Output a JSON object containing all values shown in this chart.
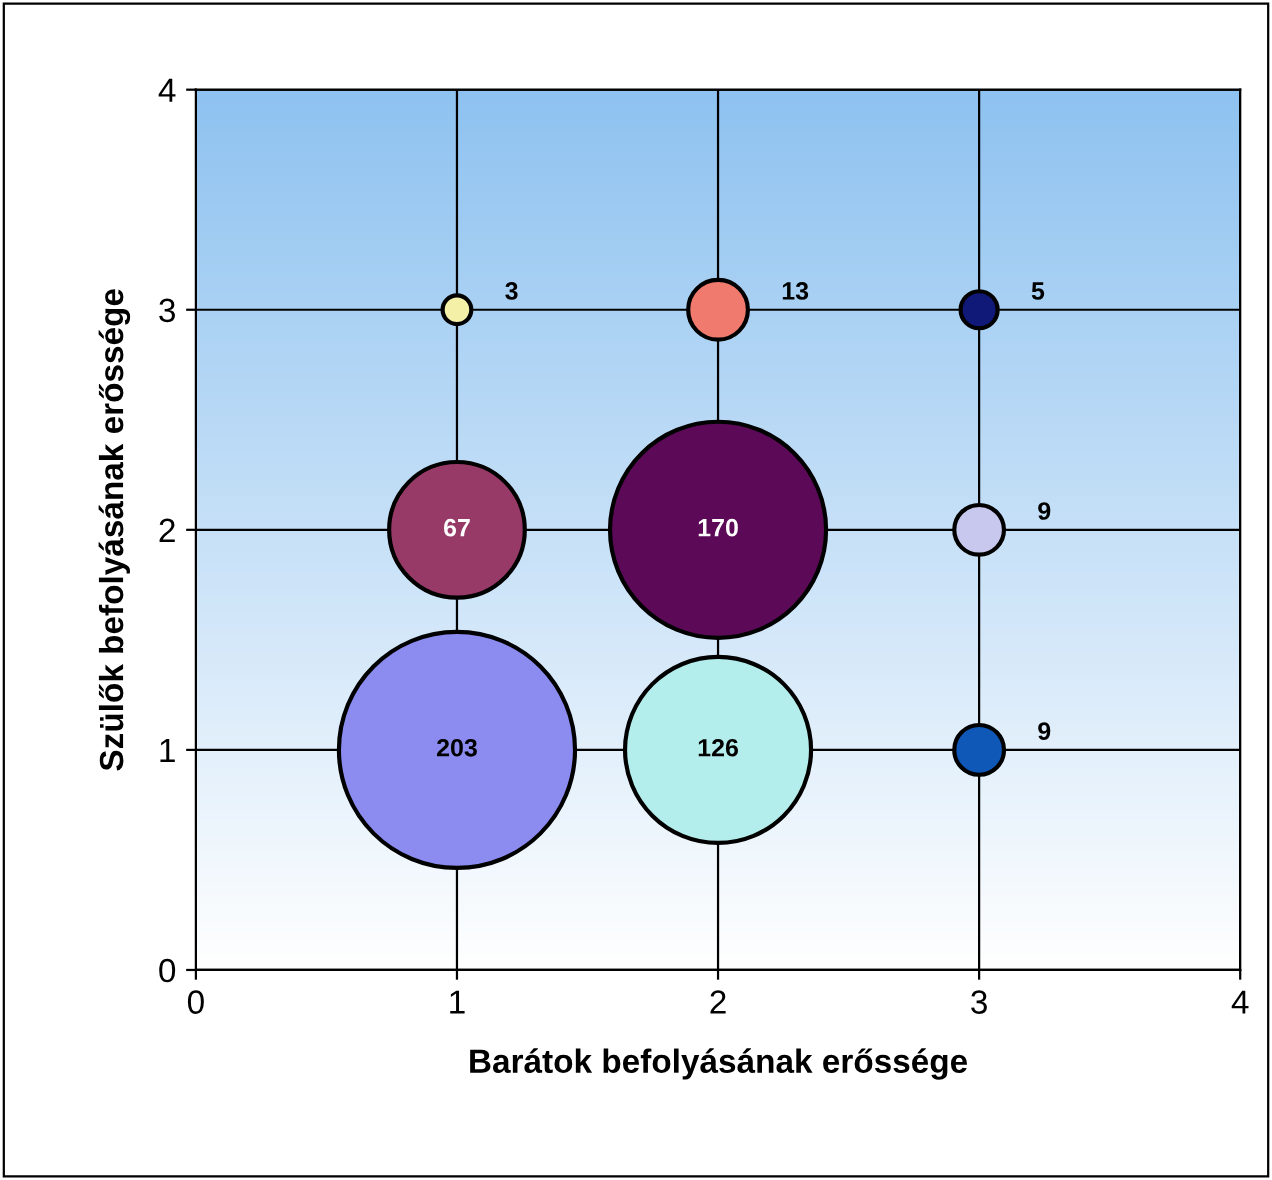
{
  "chart_data": {
    "type": "bubble",
    "xlabel": "Barátok befolyásának erőssége",
    "ylabel": "Szülők befolyásának erőssége",
    "x": [
      1,
      2,
      3,
      1,
      2,
      3,
      1,
      2,
      3
    ],
    "values": [
      3,
      3,
      3,
      2,
      2,
      2,
      1,
      1,
      1
    ],
    "sizes": [
      3,
      13,
      5,
      67,
      170,
      9,
      203,
      126,
      9
    ],
    "value_labels": [
      "3",
      "13",
      "5",
      "67",
      "170",
      "9",
      "203",
      "126",
      "9"
    ],
    "colors": [
      "#f4f0a8",
      "#f07a6e",
      "#101878",
      "#983a68",
      "#5c0a58",
      "#c8c8ee",
      "#8c8cf0",
      "#b4eeec",
      "#1058b8"
    ],
    "xlim": [
      0,
      4
    ],
    "ylim": [
      0,
      4
    ],
    "xticks": [
      0,
      1,
      2,
      3,
      4
    ],
    "yticks": [
      0,
      1,
      2,
      3,
      4
    ],
    "grid": true
  }
}
